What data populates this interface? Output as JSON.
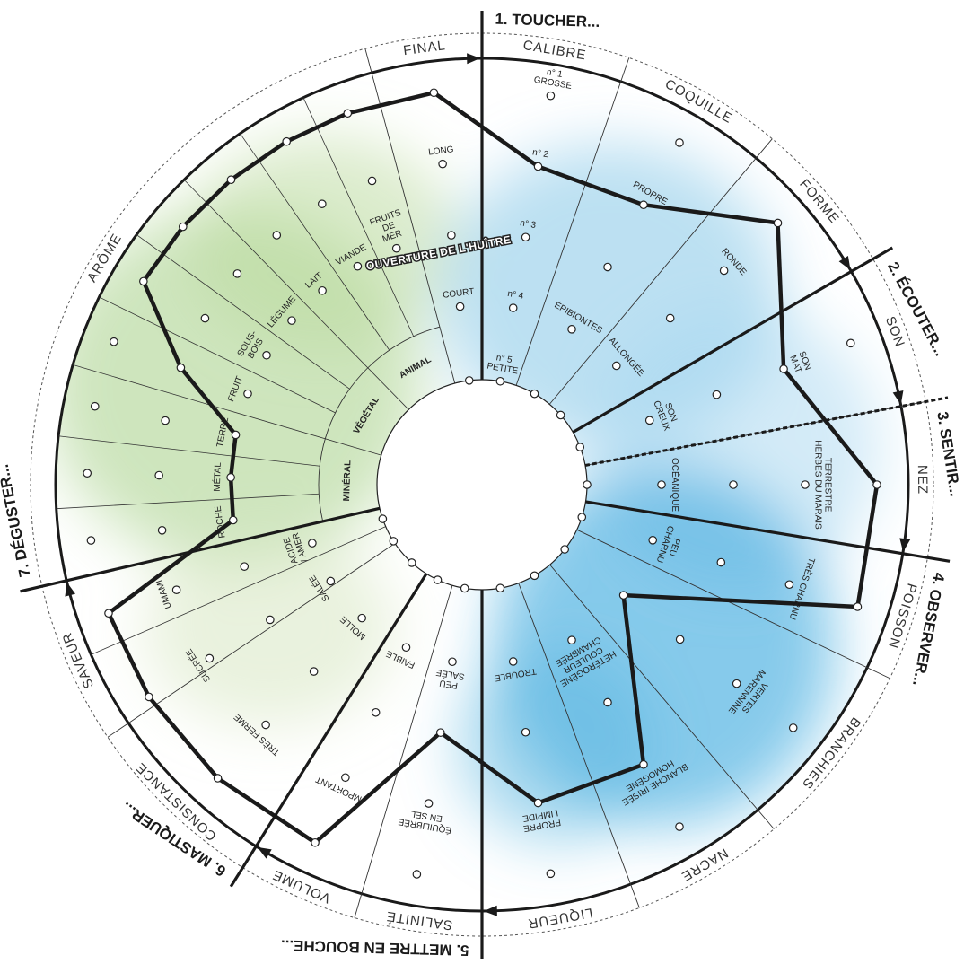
{
  "opening_label": "OUVERTURE DE L'HUÎTRE",
  "steps": [
    {
      "label": "1. TOUCHER...",
      "criteria": [
        {
          "name": "CALIBRE",
          "columns": [
            {
              "levels": [
                "n° 1\nGROSSE",
                "n° 2",
                "n° 3",
                "n° 4",
                "n° 5\nPETITE"
              ],
              "selected": 1
            }
          ]
        },
        {
          "name": "COQUILLE",
          "columns": [
            {
              "levels": [
                null,
                "PROPRE",
                null,
                "ÉPIBIONTES",
                null
              ],
              "selected": 1
            }
          ]
        },
        {
          "name": "FORME",
          "columns": [
            {
              "levels": [
                null,
                "RONDE",
                null,
                "ALLONGÉE",
                null
              ],
              "selected": 0
            }
          ]
        }
      ]
    },
    {
      "label": "2. ÉCOUTER...",
      "criteria": [
        {
          "name": "SON",
          "columns": [
            {
              "levels": [
                null,
                "SON\nMAT",
                null,
                "SON\nCREUX",
                null
              ],
              "selected": 1
            }
          ]
        }
      ]
    },
    {
      "label": "3. SENTIR...",
      "criteria": [
        {
          "name": "NEZ",
          "columns": [
            {
              "levels": [
                null,
                "TERRESTRE\nHERBES DU MARAIS",
                null,
                "OCÉANIQUE",
                null
              ],
              "selected": 0
            }
          ]
        }
      ]
    },
    {
      "label": "4. OBSERVER...",
      "criteria": [
        {
          "name": "POISSON",
          "columns": [
            {
              "levels": [
                null,
                "TRÈS CHARNU",
                null,
                "PEU\nCHARNU",
                null
              ],
              "selected": 0
            }
          ]
        },
        {
          "name": "BRANCHIES",
          "columns": [
            {
              "levels": [
                null,
                "VERTES\nMARENNINE",
                null,
                null,
                null
              ],
              "selected": 3
            }
          ]
        },
        {
          "name": "NACRE",
          "columns": [
            {
              "levels": [
                null,
                "BLANCHE IRISÉE\nHOMOGÈNE",
                null,
                "HÉTÉROGÈNE\nCOULEUR\nCHAMBRÉE",
                null
              ],
              "selected": 1
            }
          ]
        },
        {
          "name": "LIQUEUR",
          "columns": [
            {
              "levels": [
                null,
                "PROPRE\nLIMPIDE",
                null,
                "TROUBLE",
                null
              ],
              "selected": 1
            }
          ]
        }
      ]
    },
    {
      "label": "5. METTRE EN BOUCHE...",
      "criteria": [
        {
          "name": "SALINITÉ",
          "columns": [
            {
              "levels": [
                null,
                "ÉQUILIBRÉE\nEN SEL",
                null,
                "PEU\nSALÉE",
                null
              ],
              "selected": 2
            }
          ]
        },
        {
          "name": "VOLUME",
          "columns": [
            {
              "levels": [
                null,
                "IMPORTANT",
                null,
                "FAIBLE",
                null
              ],
              "selected": 0
            }
          ]
        }
      ]
    },
    {
      "label": "6. MASTIQUER...",
      "criteria": [
        {
          "name": "CONSISTANCE",
          "columns": [
            {
              "levels": [
                null,
                "TRÈS FERME",
                null,
                "MOLLE",
                null
              ],
              "selected": 0
            }
          ]
        },
        {
          "name": "SAVEUR",
          "columns": [
            {
              "levels": [
                null,
                "SUCRÉE",
                null,
                "SALÉE",
                null
              ],
              "selected": 0
            },
            {
              "levels": [
                null,
                "UMAMI",
                null,
                "ACIDE\n/ AMER",
                null
              ],
              "selected": 0
            }
          ]
        }
      ]
    },
    {
      "label": "7. DÉGUSTER...",
      "criteria": [
        {
          "name": "ARÔME",
          "groups": [
            "MINÉRAL",
            "VÉGÉTAL",
            "ANIMAL"
          ],
          "columns": [
            {
              "levels": [
                null,
                null,
                "ROCHE"
              ],
              "selected": 2
            },
            {
              "levels": [
                null,
                null,
                "MÉTAL"
              ],
              "selected": 2
            },
            {
              "levels": [
                null,
                null,
                "TERRE"
              ],
              "selected": 2
            },
            {
              "levels": [
                null,
                null,
                "FRUIT"
              ],
              "selected": 1
            },
            {
              "levels": [
                null,
                null,
                "SOUS-\nBOIS"
              ],
              "selected": 0
            },
            {
              "levels": [
                null,
                null,
                "LÉGUME"
              ],
              "selected": 0
            },
            {
              "levels": [
                null,
                null,
                "LAIT"
              ],
              "selected": 0
            },
            {
              "levels": [
                null,
                null,
                "VIANDE"
              ],
              "selected": 0
            },
            {
              "levels": [
                null,
                null,
                "FRUITS\nDE\nMER"
              ],
              "selected": 0
            }
          ]
        },
        {
          "name": "FINAL",
          "columns": [
            {
              "levels": [
                null,
                "LONG",
                null,
                "COURT",
                null
              ],
              "selected": 0
            }
          ]
        }
      ]
    }
  ]
}
